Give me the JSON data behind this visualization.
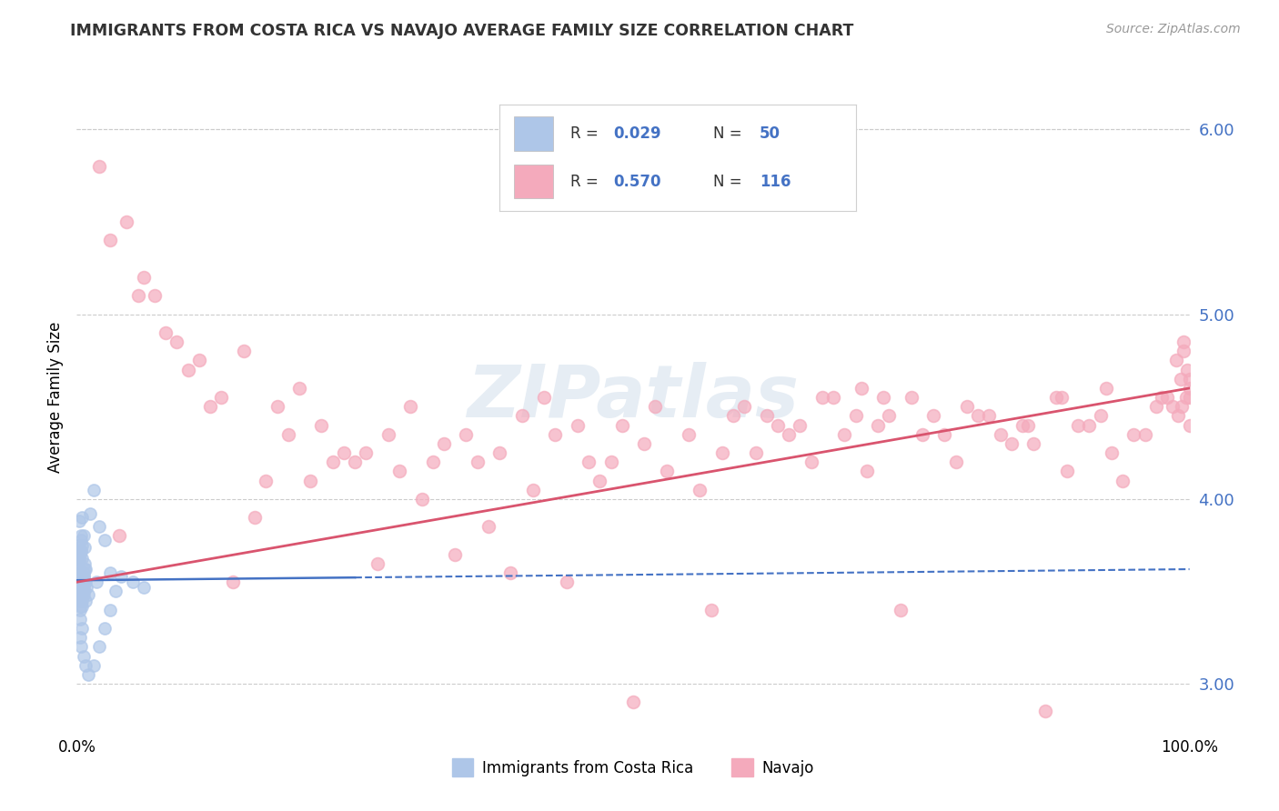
{
  "title": "IMMIGRANTS FROM COSTA RICA VS NAVAJO AVERAGE FAMILY SIZE CORRELATION CHART",
  "source_text": "Source: ZipAtlas.com",
  "ylabel": "Average Family Size",
  "xlim": [
    0,
    100
  ],
  "ylim": [
    2.75,
    6.35
  ],
  "yticks": [
    3.0,
    4.0,
    5.0,
    6.0
  ],
  "xticklabels": [
    "0.0%",
    "100.0%"
  ],
  "legend_bottom_labels": [
    "Immigrants from Costa Rica",
    "Navajo"
  ],
  "watermark": "ZIPatlas",
  "background_color": "#ffffff",
  "grid_color": "#cccccc",
  "ytick_color": "#4472c4",
  "title_color": "#333333",
  "blue_scatter_color": "#aec6e8",
  "pink_scatter_color": "#f4aabc",
  "blue_line_color": "#4472c4",
  "pink_line_color": "#d9546e",
  "blue_points": [
    [
      0.2,
      3.67
    ],
    [
      0.4,
      3.72
    ],
    [
      0.5,
      3.58
    ],
    [
      0.6,
      3.8
    ],
    [
      0.7,
      3.74
    ],
    [
      0.3,
      3.5
    ],
    [
      0.5,
      3.9
    ],
    [
      0.2,
      3.6
    ],
    [
      0.3,
      3.55
    ],
    [
      0.4,
      3.48
    ],
    [
      0.2,
      3.62
    ],
    [
      0.3,
      3.7
    ],
    [
      0.5,
      3.52
    ],
    [
      0.6,
      3.58
    ],
    [
      0.7,
      3.55
    ],
    [
      0.1,
      3.65
    ],
    [
      0.4,
      3.48
    ],
    [
      0.5,
      3.75
    ],
    [
      0.3,
      3.4
    ],
    [
      0.6,
      3.6
    ],
    [
      0.2,
      3.55
    ],
    [
      0.4,
      3.78
    ],
    [
      0.5,
      3.45
    ],
    [
      0.6,
      3.5
    ],
    [
      0.8,
      3.62
    ],
    [
      0.1,
      3.68
    ],
    [
      0.4,
      3.55
    ],
    [
      0.5,
      3.42
    ],
    [
      0.6,
      3.58
    ],
    [
      0.7,
      3.65
    ],
    [
      0.1,
      3.72
    ],
    [
      0.2,
      3.48
    ],
    [
      0.4,
      3.8
    ],
    [
      0.6,
      3.52
    ],
    [
      0.8,
      3.45
    ],
    [
      0.2,
      3.6
    ],
    [
      0.3,
      3.35
    ],
    [
      0.5,
      3.68
    ],
    [
      0.7,
      3.55
    ],
    [
      1.0,
      3.48
    ],
    [
      0.1,
      3.75
    ],
    [
      0.3,
      3.42
    ],
    [
      0.5,
      3.58
    ],
    [
      0.7,
      3.62
    ],
    [
      0.9,
      3.52
    ],
    [
      0.2,
      3.88
    ],
    [
      0.4,
      3.45
    ],
    [
      0.4,
      3.72
    ],
    [
      0.6,
      3.48
    ],
    [
      0.8,
      3.55
    ],
    [
      1.5,
      4.05
    ],
    [
      2.0,
      3.85
    ],
    [
      1.2,
      3.92
    ],
    [
      2.5,
      3.78
    ],
    [
      3.0,
      3.6
    ],
    [
      1.8,
      3.55
    ],
    [
      3.5,
      3.5
    ],
    [
      4.0,
      3.58
    ],
    [
      5.0,
      3.55
    ],
    [
      6.0,
      3.52
    ],
    [
      0.5,
      3.3
    ],
    [
      0.3,
      3.25
    ],
    [
      0.4,
      3.2
    ],
    [
      0.6,
      3.15
    ],
    [
      0.8,
      3.1
    ],
    [
      1.0,
      3.05
    ],
    [
      1.5,
      3.1
    ],
    [
      2.0,
      3.2
    ],
    [
      2.5,
      3.3
    ],
    [
      3.0,
      3.4
    ]
  ],
  "pink_points": [
    [
      2.0,
      5.8
    ],
    [
      3.0,
      5.4
    ],
    [
      4.5,
      5.5
    ],
    [
      5.5,
      5.1
    ],
    [
      8.0,
      4.9
    ],
    [
      10.0,
      4.7
    ],
    [
      12.0,
      4.5
    ],
    [
      15.0,
      4.8
    ],
    [
      18.0,
      4.5
    ],
    [
      20.0,
      4.6
    ],
    [
      22.0,
      4.4
    ],
    [
      25.0,
      4.2
    ],
    [
      28.0,
      4.35
    ],
    [
      30.0,
      4.5
    ],
    [
      32.0,
      4.2
    ],
    [
      35.0,
      4.35
    ],
    [
      38.0,
      4.25
    ],
    [
      40.0,
      4.45
    ],
    [
      42.0,
      4.55
    ],
    [
      45.0,
      4.4
    ],
    [
      48.0,
      4.2
    ],
    [
      52.0,
      4.5
    ],
    [
      55.0,
      4.35
    ],
    [
      58.0,
      4.25
    ],
    [
      60.0,
      4.5
    ],
    [
      62.0,
      4.45
    ],
    [
      65.0,
      4.4
    ],
    [
      68.0,
      4.55
    ],
    [
      70.0,
      4.45
    ],
    [
      72.0,
      4.4
    ],
    [
      75.0,
      4.55
    ],
    [
      78.0,
      4.35
    ],
    [
      80.0,
      4.5
    ],
    [
      82.0,
      4.45
    ],
    [
      85.0,
      4.4
    ],
    [
      88.0,
      4.55
    ],
    [
      90.0,
      4.4
    ],
    [
      92.0,
      4.45
    ],
    [
      95.0,
      4.35
    ],
    [
      97.0,
      4.5
    ],
    [
      98.0,
      4.55
    ],
    [
      99.0,
      4.45
    ],
    [
      99.5,
      4.8
    ],
    [
      100.0,
      4.65
    ],
    [
      6.0,
      5.2
    ],
    [
      7.0,
      5.1
    ],
    [
      9.0,
      4.85
    ],
    [
      11.0,
      4.75
    ],
    [
      13.0,
      4.55
    ],
    [
      16.0,
      3.9
    ],
    [
      19.0,
      4.35
    ],
    [
      21.0,
      4.1
    ],
    [
      23.0,
      4.2
    ],
    [
      26.0,
      4.25
    ],
    [
      29.0,
      4.15
    ],
    [
      31.0,
      4.0
    ],
    [
      33.0,
      4.3
    ],
    [
      36.0,
      4.2
    ],
    [
      39.0,
      3.6
    ],
    [
      41.0,
      4.05
    ],
    [
      43.0,
      4.35
    ],
    [
      46.0,
      4.2
    ],
    [
      49.0,
      4.4
    ],
    [
      51.0,
      4.3
    ],
    [
      53.0,
      4.15
    ],
    [
      56.0,
      4.05
    ],
    [
      59.0,
      4.45
    ],
    [
      61.0,
      4.25
    ],
    [
      63.0,
      4.4
    ],
    [
      66.0,
      4.2
    ],
    [
      69.0,
      4.35
    ],
    [
      71.0,
      4.15
    ],
    [
      73.0,
      4.45
    ],
    [
      76.0,
      4.35
    ],
    [
      79.0,
      4.2
    ],
    [
      81.0,
      4.45
    ],
    [
      83.0,
      4.35
    ],
    [
      86.0,
      4.3
    ],
    [
      89.0,
      4.15
    ],
    [
      91.0,
      4.4
    ],
    [
      93.0,
      4.25
    ],
    [
      94.0,
      4.1
    ],
    [
      96.0,
      4.35
    ],
    [
      3.8,
      3.8
    ],
    [
      14.0,
      3.55
    ],
    [
      27.0,
      3.65
    ],
    [
      44.0,
      3.55
    ],
    [
      57.0,
      3.4
    ],
    [
      74.0,
      3.4
    ],
    [
      87.0,
      2.85
    ],
    [
      50.0,
      2.9
    ],
    [
      64.0,
      4.35
    ],
    [
      77.0,
      4.45
    ],
    [
      84.0,
      4.3
    ],
    [
      47.0,
      4.1
    ],
    [
      34.0,
      3.7
    ],
    [
      17.0,
      4.1
    ],
    [
      24.0,
      4.25
    ],
    [
      37.0,
      3.85
    ],
    [
      67.0,
      4.55
    ],
    [
      70.5,
      4.6
    ],
    [
      72.5,
      4.55
    ],
    [
      85.5,
      4.4
    ],
    [
      88.5,
      4.55
    ],
    [
      92.5,
      4.6
    ],
    [
      97.5,
      4.55
    ],
    [
      98.5,
      4.5
    ],
    [
      99.2,
      4.65
    ],
    [
      98.8,
      4.75
    ],
    [
      99.5,
      4.85
    ],
    [
      99.8,
      4.7
    ],
    [
      100.0,
      4.55
    ],
    [
      100.0,
      4.6
    ],
    [
      100.0,
      4.4
    ],
    [
      99.3,
      4.5
    ],
    [
      99.7,
      4.55
    ]
  ],
  "blue_line": {
    "x0": 0,
    "x1": 100,
    "y0": 3.56,
    "y1": 3.62
  },
  "pink_line": {
    "x0": 0,
    "x1": 100,
    "y0": 3.55,
    "y1": 4.6
  }
}
